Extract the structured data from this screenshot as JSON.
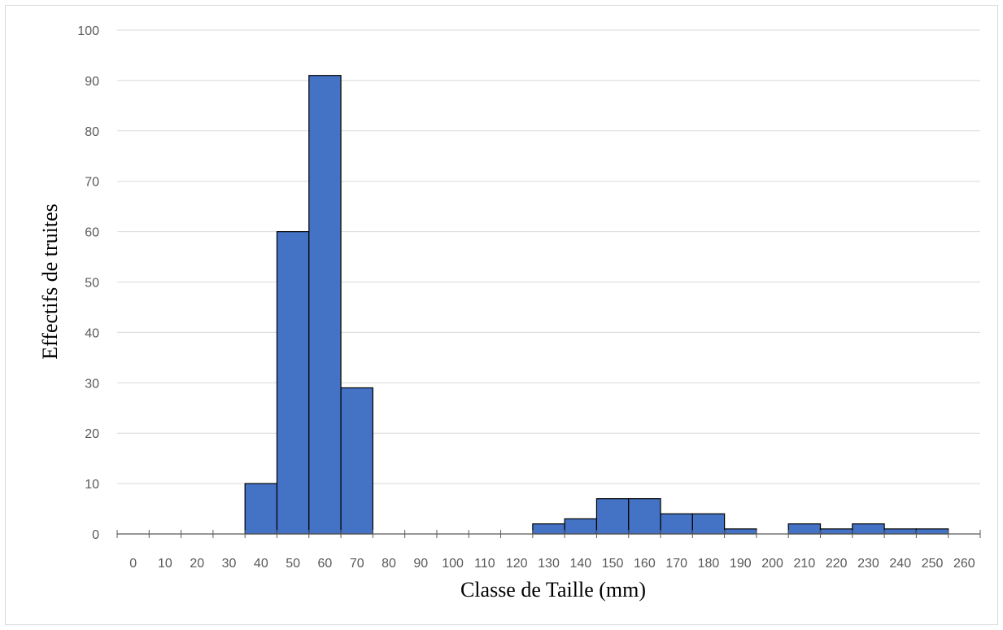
{
  "chart_data": {
    "type": "bar",
    "xlabel": "Classe de Taille (mm)",
    "ylabel": "Effectifs de truites",
    "ylim": [
      0,
      100
    ],
    "yticks": [
      "0",
      "10",
      "20",
      "30",
      "40",
      "50",
      "60",
      "70",
      "80",
      "90",
      "100"
    ],
    "xlim": [
      0,
      270
    ],
    "xticks": [
      "0",
      "10",
      "20",
      "30",
      "40",
      "50",
      "60",
      "70",
      "80",
      "90",
      "100",
      "110",
      "120",
      "130",
      "140",
      "150",
      "160",
      "170",
      "180",
      "190",
      "200",
      "210",
      "220",
      "230",
      "240",
      "250",
      "260"
    ],
    "bins": [
      {
        "start": 40,
        "end": 50,
        "value": 10
      },
      {
        "start": 50,
        "end": 60,
        "value": 60
      },
      {
        "start": 60,
        "end": 70,
        "value": 91
      },
      {
        "start": 70,
        "end": 80,
        "value": 29
      },
      {
        "start": 130,
        "end": 140,
        "value": 2
      },
      {
        "start": 140,
        "end": 150,
        "value": 3
      },
      {
        "start": 150,
        "end": 160,
        "value": 7
      },
      {
        "start": 160,
        "end": 170,
        "value": 7
      },
      {
        "start": 170,
        "end": 180,
        "value": 4
      },
      {
        "start": 180,
        "end": 190,
        "value": 4
      },
      {
        "start": 190,
        "end": 200,
        "value": 1
      },
      {
        "start": 210,
        "end": 220,
        "value": 2
      },
      {
        "start": 220,
        "end": 230,
        "value": 1
      },
      {
        "start": 230,
        "end": 240,
        "value": 2
      },
      {
        "start": 240,
        "end": 250,
        "value": 1
      },
      {
        "start": 250,
        "end": 260,
        "value": 1
      }
    ],
    "grid": "horizontal",
    "bar_color": "#4472c4",
    "bar_edge_color": "#000000",
    "grid_color": "#d9d9d9"
  }
}
